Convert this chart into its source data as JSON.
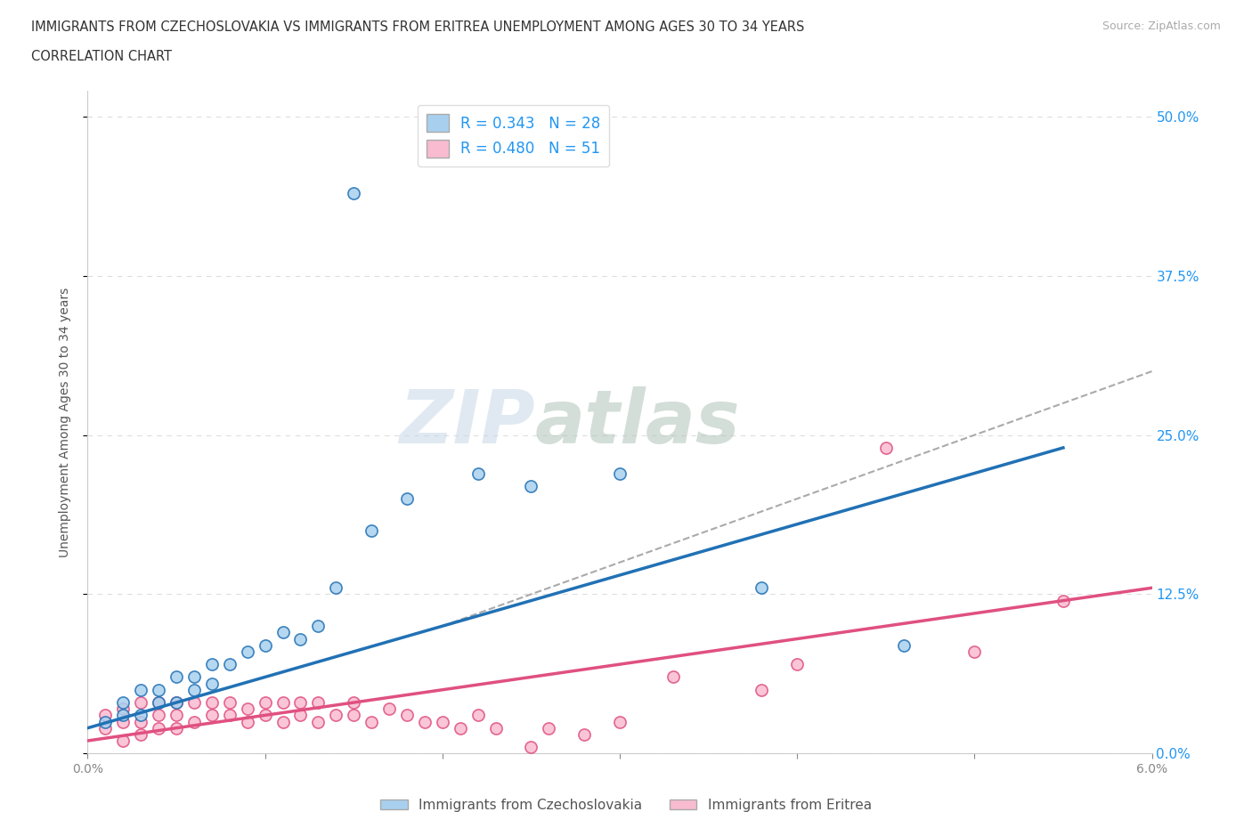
{
  "title_line1": "IMMIGRANTS FROM CZECHOSLOVAKIA VS IMMIGRANTS FROM ERITREA UNEMPLOYMENT AMONG AGES 30 TO 34 YEARS",
  "title_line2": "CORRELATION CHART",
  "source": "Source: ZipAtlas.com",
  "ylabel": "Unemployment Among Ages 30 to 34 years",
  "xlim": [
    0.0,
    0.06
  ],
  "ylim": [
    0.0,
    0.52
  ],
  "yticks": [
    0.0,
    0.125,
    0.25,
    0.375,
    0.5
  ],
  "ytick_labels": [
    "0.0%",
    "12.5%",
    "25.0%",
    "37.5%",
    "50.0%"
  ],
  "xticks": [
    0.0,
    0.01,
    0.02,
    0.03,
    0.04,
    0.05,
    0.06
  ],
  "xtick_labels": [
    "0.0%",
    "",
    "",
    "",
    "",
    "",
    "6.0%"
  ],
  "r_czech": 0.343,
  "n_czech": 28,
  "r_eritrea": 0.48,
  "n_eritrea": 51,
  "color_czech": "#a8d0ee",
  "color_eritrea": "#f8bbd0",
  "color_czech_line": "#2171b5",
  "color_eritrea_line": "#e05080",
  "color_dashed": "#aaaaaa",
  "watermark_zip": "ZIP",
  "watermark_atlas": "atlas",
  "legend_label_czech": "Immigrants from Czechoslovakia",
  "legend_label_eritrea": "Immigrants from Eritrea",
  "czech_line_x": [
    0.0,
    0.055
  ],
  "czech_line_y": [
    0.02,
    0.24
  ],
  "eritrea_line_x": [
    0.0,
    0.06
  ],
  "eritrea_line_y": [
    0.01,
    0.13
  ],
  "dashed_line_x": [
    0.02,
    0.06
  ],
  "dashed_line_y": [
    0.1,
    0.3
  ],
  "czech_x": [
    0.001,
    0.002,
    0.002,
    0.003,
    0.003,
    0.004,
    0.004,
    0.005,
    0.005,
    0.006,
    0.006,
    0.007,
    0.007,
    0.008,
    0.009,
    0.01,
    0.011,
    0.012,
    0.013,
    0.014,
    0.015,
    0.016,
    0.018,
    0.022,
    0.025,
    0.03,
    0.038,
    0.046
  ],
  "czech_y": [
    0.025,
    0.03,
    0.04,
    0.03,
    0.05,
    0.04,
    0.05,
    0.04,
    0.06,
    0.05,
    0.06,
    0.055,
    0.07,
    0.07,
    0.08,
    0.085,
    0.095,
    0.09,
    0.1,
    0.13,
    0.44,
    0.175,
    0.2,
    0.22,
    0.21,
    0.22,
    0.13,
    0.085
  ],
  "eritrea_x": [
    0.001,
    0.001,
    0.002,
    0.002,
    0.002,
    0.003,
    0.003,
    0.003,
    0.004,
    0.004,
    0.004,
    0.005,
    0.005,
    0.005,
    0.006,
    0.006,
    0.007,
    0.007,
    0.008,
    0.008,
    0.009,
    0.009,
    0.01,
    0.01,
    0.011,
    0.011,
    0.012,
    0.012,
    0.013,
    0.013,
    0.014,
    0.015,
    0.015,
    0.016,
    0.017,
    0.018,
    0.019,
    0.02,
    0.021,
    0.022,
    0.023,
    0.025,
    0.026,
    0.028,
    0.03,
    0.033,
    0.038,
    0.04,
    0.045,
    0.05,
    0.055
  ],
  "eritrea_y": [
    0.02,
    0.03,
    0.01,
    0.025,
    0.035,
    0.015,
    0.025,
    0.04,
    0.02,
    0.03,
    0.04,
    0.02,
    0.03,
    0.04,
    0.025,
    0.04,
    0.03,
    0.04,
    0.03,
    0.04,
    0.025,
    0.035,
    0.03,
    0.04,
    0.025,
    0.04,
    0.03,
    0.04,
    0.025,
    0.04,
    0.03,
    0.03,
    0.04,
    0.025,
    0.035,
    0.03,
    0.025,
    0.025,
    0.02,
    0.03,
    0.02,
    0.005,
    0.02,
    0.015,
    0.025,
    0.06,
    0.05,
    0.07,
    0.24,
    0.08,
    0.12
  ]
}
